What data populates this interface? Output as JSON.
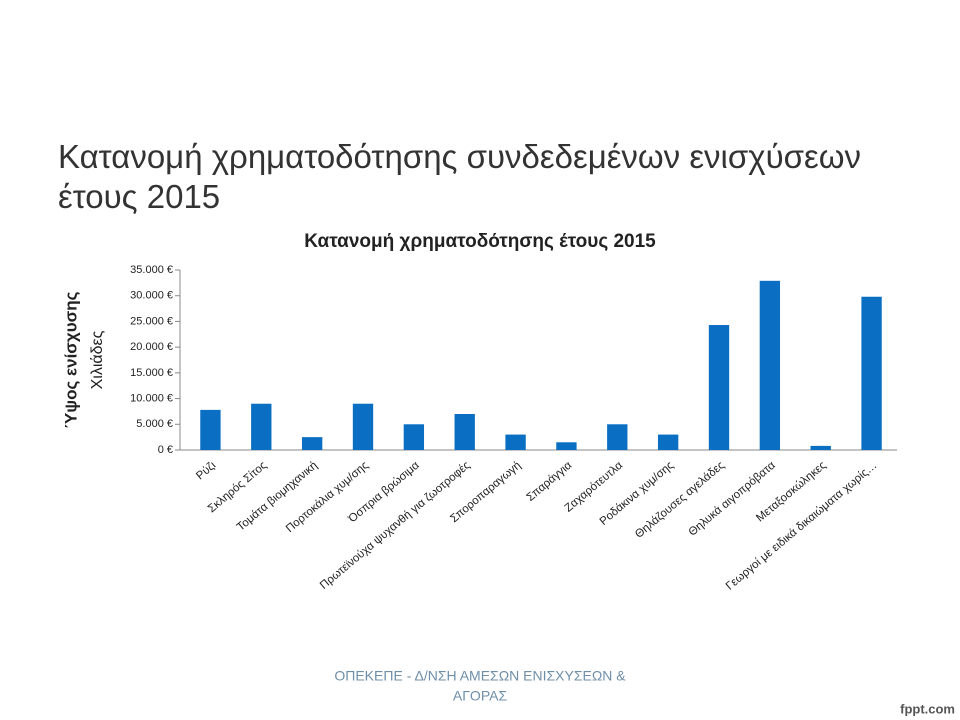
{
  "slide": {
    "title_lines": [
      "Κατανομή χρηματοδότησης συνδεδεμένων ενισχύσεων",
      "έτους 2015"
    ],
    "footer_lines": [
      "ΟΠΕΚΕΠΕ - Δ/ΝΣΗ ΑΜΕΣΩΝ ΕΝΙΣΧΥΣΕΩΝ &",
      "ΑΓΟΡΑΣ"
    ],
    "watermark": "fppt.com"
  },
  "chart_data": {
    "type": "bar",
    "title": "Κατανομή χρηματοδότησης έτους 2015",
    "y_label": "Ύψος ενίσχυσης",
    "y_unit_label": "Χιλιάδες",
    "categories": [
      "Ρύζι",
      "Σκληρός Σίτος",
      "Τομάτα βιομηχανική",
      "Πορτοκάλια χυμ/σης",
      "Όσπρια βρώσιμα",
      "Πρωτεϊνούχα ψυχανθή για ζωοτροφές",
      "Σποροπαραγωγή",
      "Σπαράγγια",
      "Ζαχαρότευτλα",
      "Ροδάκινα χυμ/σης",
      "Θηλάζουσες αγελάδες",
      "Θηλυκά αιγοπρόβατα",
      "Μεταξοσκώληκες",
      "Γεωργοί με ειδικά δικαιώματα χωρίς…"
    ],
    "values": [
      7800,
      9000,
      2500,
      9000,
      5000,
      7000,
      3000,
      1500,
      5000,
      3000,
      24300,
      32900,
      800,
      29800
    ],
    "color": "#0a6fc2",
    "ylim": [
      0,
      35000
    ],
    "yticks": [
      {
        "value": 0,
        "label": "0 €"
      },
      {
        "value": 5000,
        "label": "5.000 €"
      },
      {
        "value": 10000,
        "label": "10.000 €"
      },
      {
        "value": 15000,
        "label": "15.000 €"
      },
      {
        "value": 20000,
        "label": "20.000 €"
      },
      {
        "value": 25000,
        "label": "25.000 €"
      },
      {
        "value": 30000,
        "label": "30.000 €"
      },
      {
        "value": 35000,
        "label": "35.000 €"
      }
    ],
    "grid": false
  }
}
